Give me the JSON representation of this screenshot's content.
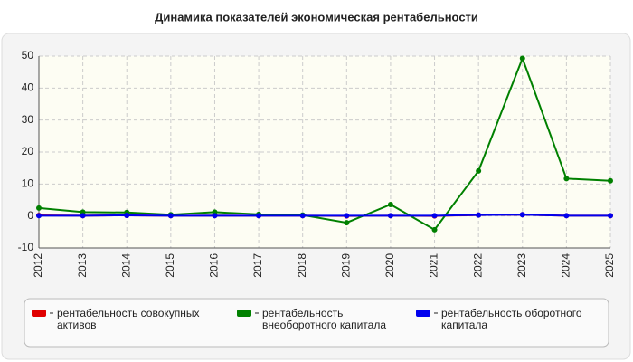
{
  "chart_data": {
    "type": "line",
    "title": "Динамика показателей экономическая рентабельности",
    "categories": [
      "2012",
      "2013",
      "2014",
      "2015",
      "2016",
      "2017",
      "2018",
      "2019",
      "2020",
      "2021",
      "2022",
      "2023",
      "2024",
      "2025"
    ],
    "series": [
      {
        "name": "рентабельность совокупных активов",
        "color": "#e00000",
        "values": [
          0.2,
          0.1,
          0.2,
          0.1,
          0.1,
          0.1,
          0.1,
          0.0,
          0.1,
          0.0,
          0.3,
          0.4,
          0.1,
          0.1
        ]
      },
      {
        "name": "рентабельность внеоборотного капитала",
        "color": "#008000",
        "values": [
          2.5,
          1.2,
          1.1,
          0.4,
          1.2,
          0.5,
          0.3,
          -2.1,
          3.6,
          -4.3,
          14.1,
          49.3,
          11.7,
          11.0
        ]
      },
      {
        "name": "рентабельность оборотного капитала",
        "color": "#0000ee",
        "values": [
          0.1,
          0.1,
          0.2,
          0.1,
          0.1,
          0.1,
          0.1,
          0.1,
          0.1,
          0.1,
          0.3,
          0.4,
          0.1,
          0.1
        ]
      }
    ],
    "ylim": [
      -10,
      50
    ],
    "yticks": [
      -10,
      0,
      10,
      20,
      30,
      40,
      50
    ],
    "grid": true
  }
}
